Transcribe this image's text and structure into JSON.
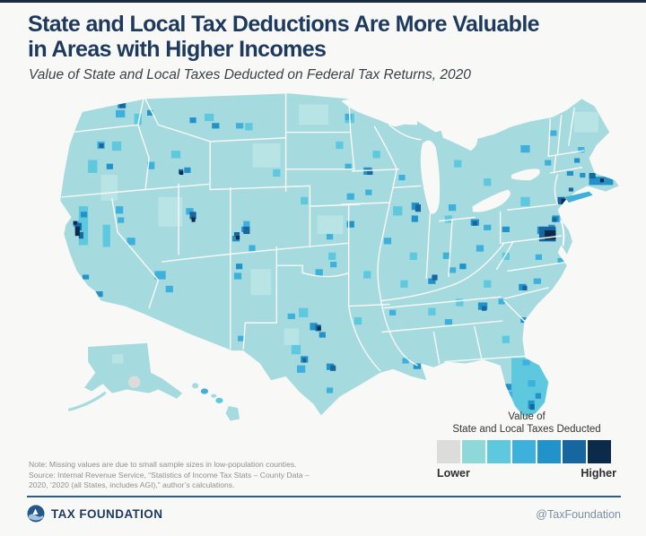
{
  "page": {
    "background": "#f8f8f6",
    "accent_navy": "#1d3a5e"
  },
  "header": {
    "title_line1": "State and Local Tax Deductions Are More Valuable",
    "title_line2": "in Areas with Higher Incomes",
    "subtitle": "Value of State and Local Taxes Deducted on Federal Tax Returns, 2020"
  },
  "legend": {
    "title_line1": "Value of",
    "title_line2": "State and Local Taxes Deducted",
    "low_label": "Lower",
    "high_label": "Higher",
    "colors": [
      "#dcdcda",
      "#8ed8da",
      "#5ec8de",
      "#3db1dc",
      "#2292cb",
      "#16679f",
      "#0c2b4b"
    ]
  },
  "notes": {
    "note_line": "Note: Missing values are due to small sample sizes in low-population counties.",
    "source_line1": "Source: Internal Revenue Service, “Statistics of Income Tax Stats – County Data –",
    "source_line2": "2020, ‘2020 (all States, includes AGI),” author’s calculations."
  },
  "footer": {
    "brand": "TAX FOUNDATION",
    "handle": "@TaxFoundation"
  },
  "chart_data": {
    "type": "choropleth",
    "title": "State and Local Tax Deductions Are More Valuable in Areas with Higher Incomes",
    "subtitle": "Value of State and Local Taxes Deducted on Federal Tax Returns, 2020",
    "geography": "United States by county, with Alaska and Hawaii insets",
    "value_scale": {
      "kind": "ordinal-unlabeled",
      "legend_title": "Value of State and Local Taxes Deducted",
      "endpoints": [
        "Lower",
        "Higher"
      ],
      "colors": [
        "#dcdcda",
        "#8ed8da",
        "#5ec8de",
        "#3db1dc",
        "#2292cb",
        "#16679f",
        "#0c2b4b"
      ],
      "missing_color": "#dcdcda",
      "base_county_color": "#a5dade"
    },
    "highest_value_areas": [
      "Washington DC metro / Maryland suburbs (darkest)",
      "New York City metro",
      "San Francisco Bay Area",
      "Boston metro",
      "Seattle",
      "Portland OR",
      "Salt Lake City",
      "Jackson WY",
      "Denver / Colorado ski counties",
      "Minneapolis",
      "Chicago",
      "Dallas-Fort Worth",
      "Houston",
      "Austin",
      "Nashville",
      "Atlanta",
      "Charlotte / Raleigh",
      "South Florida",
      "Los Angeles"
    ],
    "missing_data_note": "Gray counties (e.g., area near Anchorage, Alaska) indicate missing values due to small sample sizes"
  }
}
